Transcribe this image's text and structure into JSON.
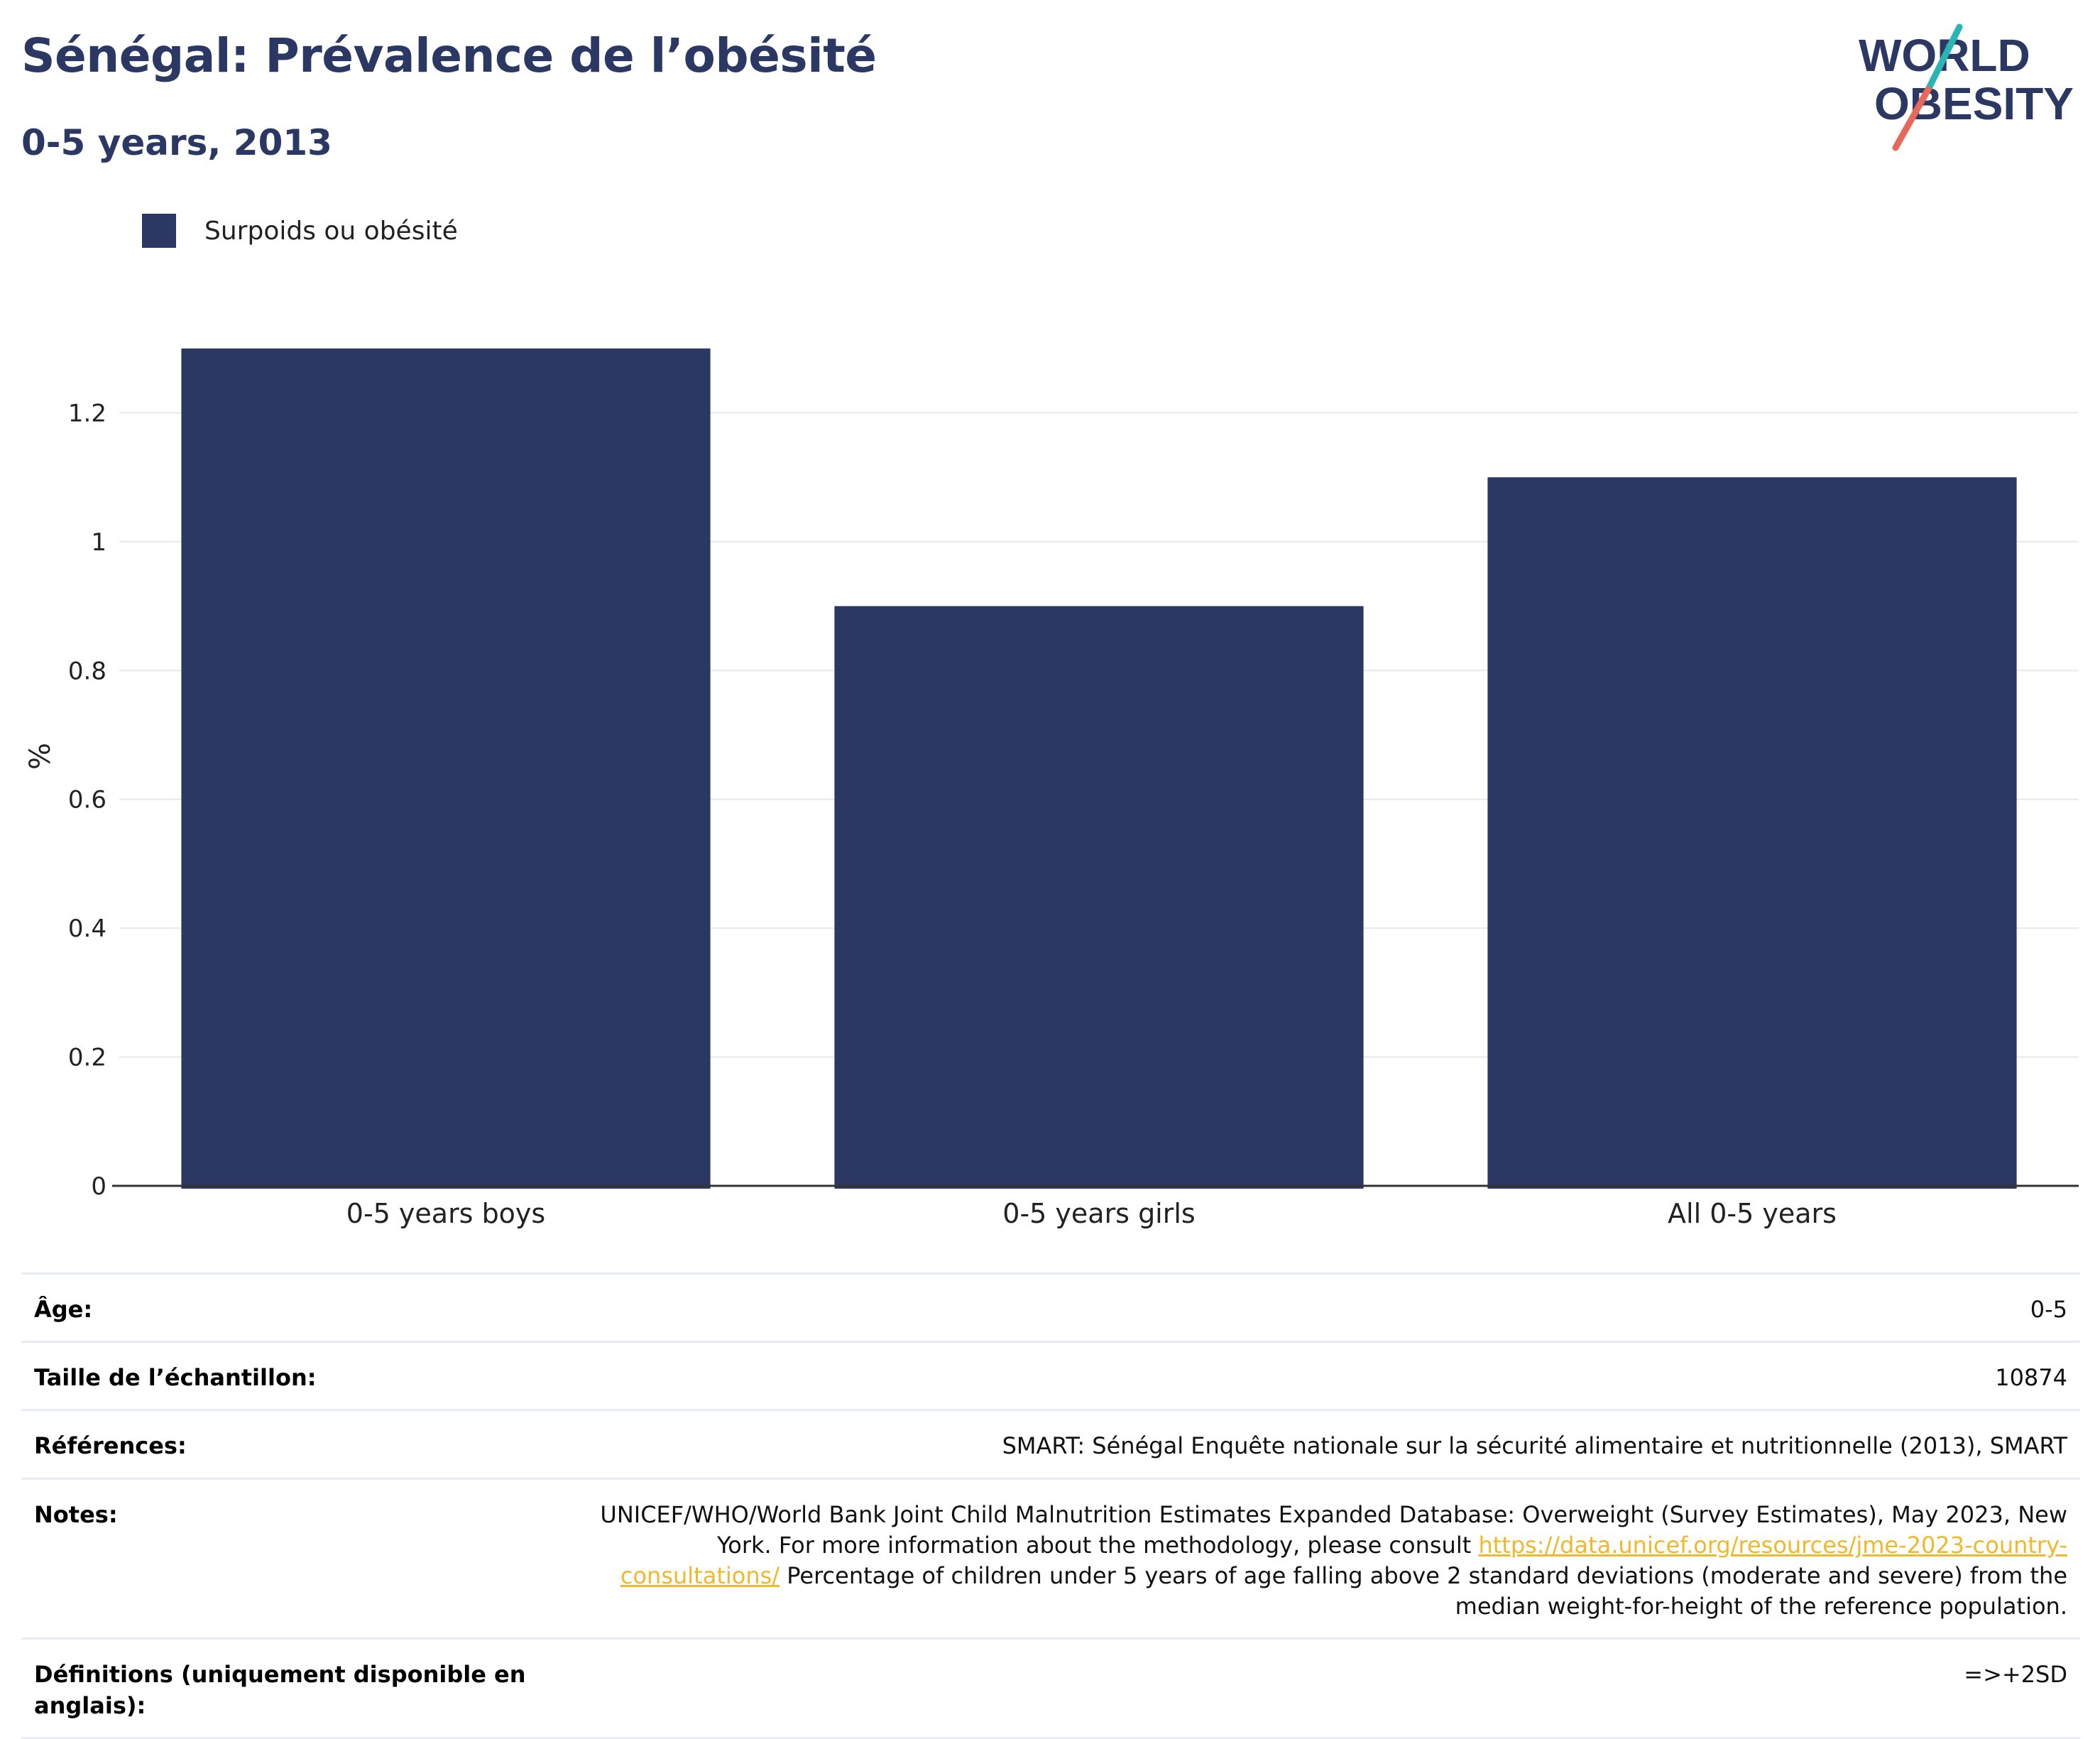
{
  "header": {
    "title": "Sénégal: Prévalence de l’obésité",
    "subtitle": "0-5 years, 2013"
  },
  "logo": {
    "line1": "WORLD",
    "line2": "OBESITY",
    "colors": {
      "text": "#2b3864",
      "slash_teal": "#2ab5b5",
      "slash_red": "#e8685a"
    }
  },
  "chart_data": {
    "type": "bar",
    "title": "Sénégal: Prévalence de l’obésité",
    "subtitle": "0-5 years, 2013",
    "categories": [
      "0-5 years boys",
      "0-5 years girls",
      "All 0-5 years"
    ],
    "series": [
      {
        "name": "Surpoids ou obésité",
        "values": [
          1.3,
          0.9,
          1.1
        ],
        "color": "#2b3864"
      }
    ],
    "ylabel": "%",
    "xlabel": "",
    "ylim": [
      0,
      1.4
    ],
    "yticks": [
      0,
      0.2,
      0.4,
      0.6,
      0.8,
      1,
      1.2
    ],
    "ytick_labels": [
      "0",
      "0.2",
      "0.4",
      "0.6",
      "0.8",
      "1",
      "1.2"
    ],
    "grid": true,
    "legend_position": "top-left"
  },
  "metadata": {
    "age_label": "Âge:",
    "age_value": "0-5",
    "sample_label": "Taille de l’échantillon:",
    "sample_value": "10874",
    "refs_label": "Références:",
    "refs_value": "SMART: Sénégal Enquête nationale sur la sécurité alimentaire et nutritionnelle (2013), SMART",
    "notes_label": "Notes:",
    "notes_text1": "UNICEF/WHO/World Bank Joint Child Malnutrition Estimates Expanded Database: Overweight (Survey Estimates), May 2023, New York. For more information about the methodology, please consult ",
    "notes_link": "https://data.unicef.org/resources/jme-2023-country-consultations/",
    "notes_text2": " Percentage of children under 5 years of age falling above 2 standard deviations (moderate and severe) from the median weight-for-height of the reference population.",
    "defs_label": "Définitions (uniquement disponible en anglais):",
    "defs_value": "=>+2SD"
  }
}
